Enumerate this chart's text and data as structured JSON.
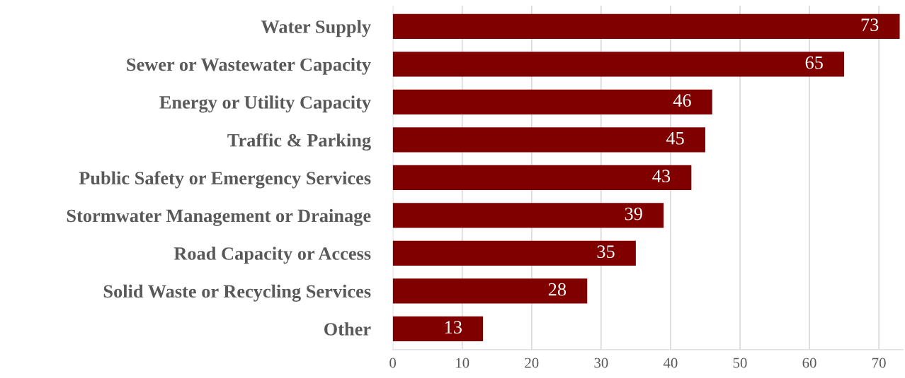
{
  "chart_data": {
    "type": "bar",
    "orientation": "horizontal",
    "categories": [
      "Water Supply",
      "Sewer or Wastewater Capacity",
      "Energy or Utility Capacity",
      "Traffic & Parking",
      "Public Safety or Emergency Services",
      "Stormwater Management or Drainage",
      "Road Capacity or Access",
      "Solid Waste or Recycling Services",
      "Other"
    ],
    "values": [
      73,
      65,
      46,
      45,
      43,
      39,
      35,
      28,
      13
    ],
    "color": "#800000",
    "xlim": [
      0,
      73.5
    ],
    "xticks": [
      0,
      10,
      20,
      30,
      40,
      50,
      60,
      70
    ],
    "grid": "x",
    "data_labels": true,
    "legend": false
  }
}
